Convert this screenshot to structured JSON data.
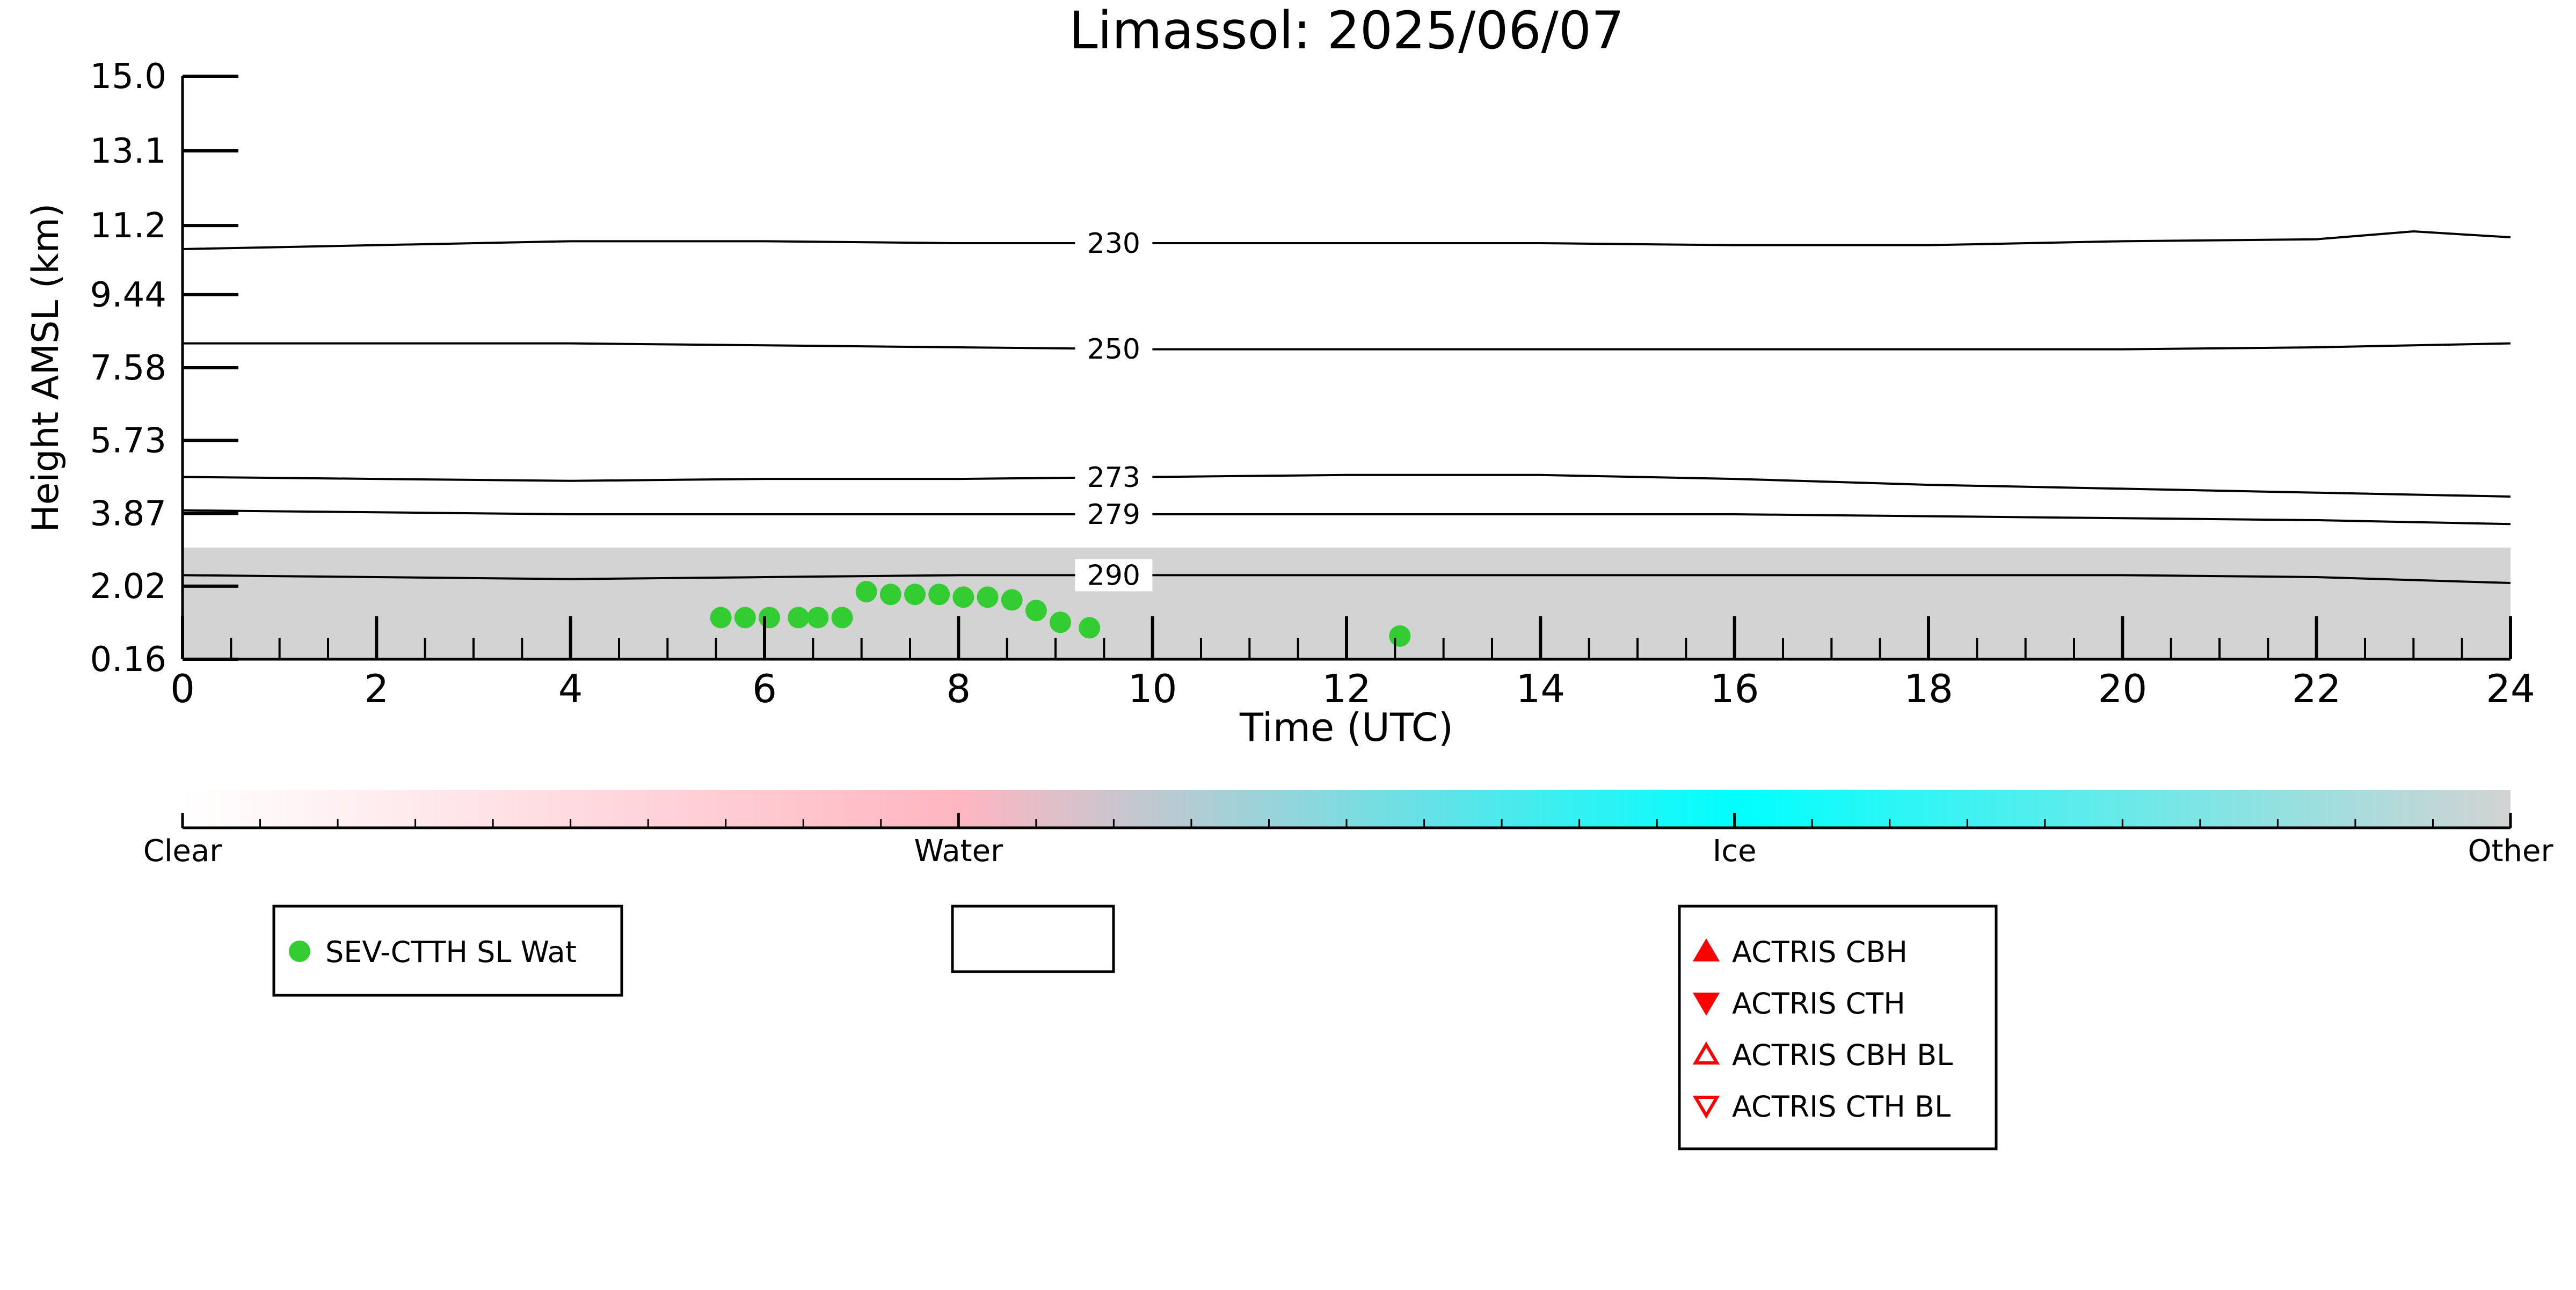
{
  "chart_data": {
    "type": "scatter",
    "title": "Limassol: 2025/06/07",
    "xlabel": "Time (UTC)",
    "ylabel": "Height AMSL (km)",
    "xlim": [
      0,
      24
    ],
    "ylim": [
      0.16,
      15.0
    ],
    "x_ticks": [
      "0",
      "2",
      "4",
      "6",
      "8",
      "10",
      "12",
      "14",
      "16",
      "18",
      "20",
      "22",
      "24"
    ],
    "y_ticks": [
      {
        "value": 0.16,
        "label": "0.16"
      },
      {
        "value": 2.02,
        "label": "2.02"
      },
      {
        "value": 3.87,
        "label": "3.87"
      },
      {
        "value": 5.73,
        "label": "5.73"
      },
      {
        "value": 7.58,
        "label": "7.58"
      },
      {
        "value": 9.44,
        "label": "9.44"
      },
      {
        "value": 11.2,
        "label": "11.2"
      },
      {
        "value": 13.1,
        "label": "13.1"
      },
      {
        "value": 15.0,
        "label": "15.0"
      }
    ],
    "grid": false,
    "series": [
      {
        "name": "SEV-CTTH SL Wat",
        "marker": "circle",
        "color": "#33cc33",
        "x": [
          5.55,
          5.8,
          6.05,
          6.35,
          6.55,
          6.8,
          7.05,
          7.3,
          7.55,
          7.8,
          8.05,
          8.3,
          8.55,
          8.8,
          9.05,
          9.35,
          12.55
        ],
        "y": [
          1.22,
          1.22,
          1.22,
          1.22,
          1.22,
          1.22,
          1.88,
          1.81,
          1.81,
          1.81,
          1.74,
          1.74,
          1.67,
          1.4,
          1.1,
          0.96,
          0.75
        ]
      }
    ],
    "temperature_contours": [
      {
        "label": "230",
        "x": [
          0,
          2,
          4,
          6,
          8,
          10,
          12,
          14,
          16,
          18,
          20,
          22,
          23,
          24
        ],
        "y": [
          10.6,
          10.7,
          10.8,
          10.8,
          10.75,
          10.75,
          10.75,
          10.75,
          10.7,
          10.7,
          10.8,
          10.85,
          11.05,
          10.9
        ]
      },
      {
        "label": "250",
        "x": [
          0,
          2,
          4,
          6,
          8,
          10,
          12,
          14,
          16,
          18,
          20,
          22,
          23,
          24
        ],
        "y": [
          8.2,
          8.2,
          8.2,
          8.15,
          8.1,
          8.05,
          8.05,
          8.05,
          8.05,
          8.05,
          8.05,
          8.1,
          8.15,
          8.2
        ]
      },
      {
        "label": "273",
        "x": [
          0,
          2,
          4,
          6,
          8,
          10,
          12,
          14,
          16,
          18,
          20,
          22,
          24
        ],
        "y": [
          4.8,
          4.75,
          4.7,
          4.75,
          4.75,
          4.8,
          4.85,
          4.85,
          4.75,
          4.6,
          4.5,
          4.4,
          4.3
        ]
      },
      {
        "label": "279",
        "x": [
          0,
          2,
          4,
          6,
          8,
          10,
          12,
          14,
          16,
          18,
          20,
          22,
          24
        ],
        "y": [
          3.95,
          3.9,
          3.85,
          3.85,
          3.85,
          3.85,
          3.85,
          3.85,
          3.85,
          3.8,
          3.75,
          3.7,
          3.6
        ]
      },
      {
        "label": "290",
        "x": [
          0,
          2,
          4,
          6,
          8,
          10,
          12,
          14,
          16,
          18,
          20,
          22,
          24
        ],
        "y": [
          2.3,
          2.25,
          2.2,
          2.25,
          2.3,
          2.3,
          2.3,
          2.3,
          2.3,
          2.3,
          2.3,
          2.25,
          2.1
        ]
      }
    ],
    "background_region": {
      "label": "Other",
      "color": "#d3d3d3",
      "x_range": [
        0,
        24
      ],
      "top_km": 3.0
    },
    "colorbar": {
      "labels": [
        "Clear",
        "Water",
        "Ice",
        "Other"
      ],
      "colors": [
        "#ffffff",
        "#ffb6c1",
        "#00ffff",
        "#d3d3d3"
      ]
    },
    "legend": {
      "left": [
        "SEV-CTTH SL Wat"
      ],
      "right": [
        "ACTRIS CBH",
        "ACTRIS CTH",
        "ACTRIS CBH BL",
        "ACTRIS CTH BL"
      ]
    }
  }
}
